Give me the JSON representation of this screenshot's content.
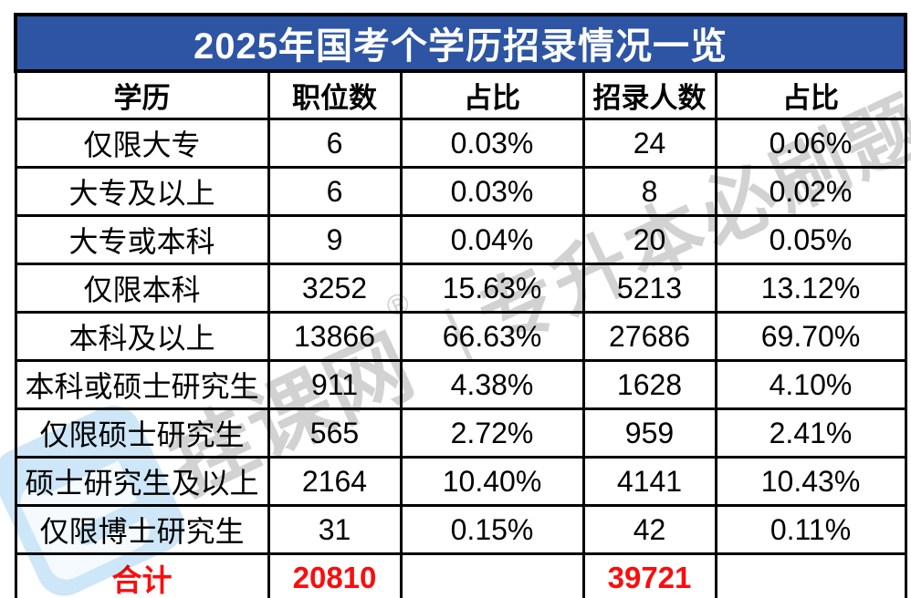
{
  "chart_data": {
    "type": "table",
    "title": "2025年国考个学历招录情况一览",
    "columns": [
      "学历",
      "职位数",
      "占比",
      "招录人数",
      "占比"
    ],
    "rows": [
      [
        "仅限大专",
        "6",
        "0.03%",
        "24",
        "0.06%"
      ],
      [
        "大专及以上",
        "6",
        "0.03%",
        "8",
        "0.02%"
      ],
      [
        "大专或本科",
        "9",
        "0.04%",
        "20",
        "0.05%"
      ],
      [
        "仅限本科",
        "3252",
        "15.63%",
        "5213",
        "13.12%"
      ],
      [
        "本科及以上",
        "13866",
        "66.63%",
        "27686",
        "69.70%"
      ],
      [
        "本科或硕士研究生",
        "911",
        "4.38%",
        "1628",
        "4.10%"
      ],
      [
        "仅限硕士研究生",
        "565",
        "2.72%",
        "959",
        "2.41%"
      ],
      [
        "硕士研究生及以上",
        "2164",
        "10.40%",
        "4141",
        "10.43%"
      ],
      [
        "仅限博士研究生",
        "31",
        "0.15%",
        "42",
        "0.11%"
      ]
    ],
    "total": [
      "合计",
      "20810",
      "",
      "39721",
      ""
    ]
  },
  "watermark": {
    "brand": "挂课网",
    "registered": "®",
    "separator": "|",
    "slogan": "专升本必刷题"
  },
  "colors": {
    "title_bg": "#2E55A3",
    "title_text": "#FFFFFF",
    "grid_border": "#000000",
    "total_red": "#FB0D0D",
    "watermark_gray": "#D2D2D2",
    "watermark_logo_blue": "#CDE6F8"
  }
}
